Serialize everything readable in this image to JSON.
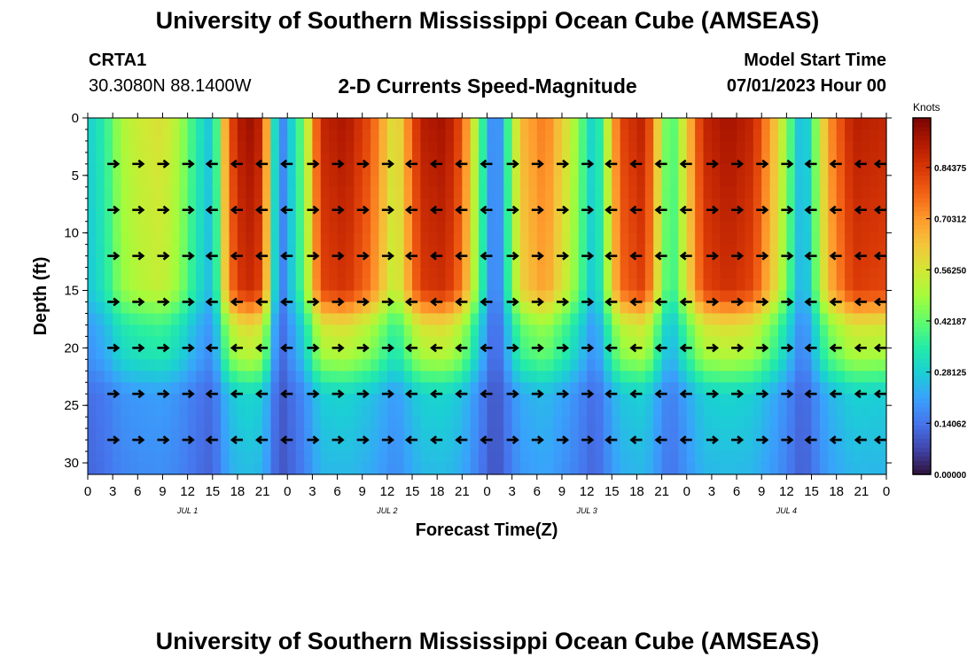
{
  "header": {
    "title": "University of Southern Mississippi Ocean Cube (AMSEAS)",
    "station_id": "CRTA1",
    "station_location": "30.3080N  88.1400W",
    "subtitle": "2-D Currents Speed-Magnitude",
    "model_start_label": "Model Start Time",
    "model_start_value": "07/01/2023 Hour 00"
  },
  "footer": {
    "title": "University of Southern Mississippi Ocean Cube (AMSEAS)"
  },
  "colors": {
    "ramp": [
      "#30123b",
      "#4145ab",
      "#4675ed",
      "#39a2fc",
      "#1bcfd4",
      "#24eca6",
      "#61fc6c",
      "#a4fc3b",
      "#d1e834",
      "#f3c63a",
      "#fe9b2d",
      "#f36315",
      "#d93806",
      "#b11901",
      "#7a0402"
    ]
  },
  "chart_data": {
    "type": "heatmap",
    "title": "2-D Currents Speed-Magnitude",
    "xlabel": "Forecast Time(Z)",
    "ylabel": "Depth (ft)",
    "ylim": [
      0,
      31
    ],
    "xlim_hours": [
      0,
      96
    ],
    "y_ticks": [
      "0",
      "5",
      "10",
      "15",
      "20",
      "25",
      "30"
    ],
    "x_tick_labels": [
      "0",
      "3",
      "6",
      "9",
      "12",
      "15",
      "18",
      "21",
      "0",
      "3",
      "6",
      "9",
      "12",
      "15",
      "18",
      "21",
      "0",
      "3",
      "6",
      "9",
      "12",
      "15",
      "18",
      "21",
      "0",
      "3",
      "6",
      "9",
      "12",
      "15",
      "18",
      "21",
      "0"
    ],
    "day_labels": [
      "JUL 1",
      "JUL 2",
      "JUL 3",
      "JUL 4"
    ],
    "colorbar": {
      "title": "Knots",
      "min": 0.0,
      "max": 0.98,
      "ticks": [
        "0.00000",
        "0.14062",
        "0.28125",
        "0.42187",
        "0.56250",
        "0.70312",
        "0.84375"
      ]
    },
    "surface_speed_by_hour": [
      {
        "hour": 0,
        "speed": 0.28
      },
      {
        "hour": 2,
        "speed": 0.35
      },
      {
        "hour": 4,
        "speed": 0.5
      },
      {
        "hour": 6,
        "speed": 0.55
      },
      {
        "hour": 9,
        "speed": 0.58
      },
      {
        "hour": 11,
        "speed": 0.5
      },
      {
        "hour": 13,
        "speed": 0.35
      },
      {
        "hour": 15,
        "speed": 0.25
      },
      {
        "hour": 17,
        "speed": 0.8
      },
      {
        "hour": 19,
        "speed": 0.95
      },
      {
        "hour": 21,
        "speed": 0.88
      },
      {
        "hour": 23,
        "speed": 0.12
      },
      {
        "hour": 26,
        "speed": 0.45
      },
      {
        "hour": 28,
        "speed": 0.88
      },
      {
        "hour": 31,
        "speed": 0.92
      },
      {
        "hour": 34,
        "speed": 0.8
      },
      {
        "hour": 37,
        "speed": 0.55
      },
      {
        "hour": 40,
        "speed": 0.9
      },
      {
        "hour": 43,
        "speed": 0.93
      },
      {
        "hour": 45,
        "speed": 0.8
      },
      {
        "hour": 49,
        "speed": 0.1
      },
      {
        "hour": 52,
        "speed": 0.65
      },
      {
        "hour": 55,
        "speed": 0.75
      },
      {
        "hour": 58,
        "speed": 0.55
      },
      {
        "hour": 61,
        "speed": 0.25
      },
      {
        "hour": 64,
        "speed": 0.82
      },
      {
        "hour": 67,
        "speed": 0.9
      },
      {
        "hour": 70,
        "speed": 0.35
      },
      {
        "hour": 74,
        "speed": 0.88
      },
      {
        "hour": 77,
        "speed": 0.93
      },
      {
        "hour": 80,
        "speed": 0.88
      },
      {
        "hour": 83,
        "speed": 0.6
      },
      {
        "hour": 86,
        "speed": 0.2
      },
      {
        "hour": 89,
        "speed": 0.7
      },
      {
        "hour": 92,
        "speed": 0.9
      },
      {
        "hour": 96,
        "speed": 0.88
      }
    ],
    "depth_attenuation": [
      {
        "depth": 0,
        "factor": 1.0
      },
      {
        "depth": 15,
        "factor": 0.92
      },
      {
        "depth": 18,
        "factor": 0.6
      },
      {
        "depth": 21,
        "factor": 0.5
      },
      {
        "depth": 24,
        "factor": 0.25
      },
      {
        "depth": 31,
        "factor": 0.2
      }
    ],
    "arrow_depths": [
      4,
      8,
      12,
      16,
      20,
      24,
      28
    ],
    "arrow_hours": [
      3,
      6,
      9,
      12,
      15,
      18,
      21,
      24,
      27,
      30,
      33,
      36,
      39,
      42,
      45,
      48,
      51,
      54,
      57,
      60,
      63,
      66,
      69,
      72,
      75,
      78,
      81,
      84,
      87,
      90,
      93,
      96
    ],
    "arrow_direction_by_hour": [
      {
        "hour": 3,
        "dir": "E"
      },
      {
        "hour": 6,
        "dir": "E"
      },
      {
        "hour": 9,
        "dir": "E"
      },
      {
        "hour": 12,
        "dir": "E"
      },
      {
        "hour": 15,
        "dir": "W"
      },
      {
        "hour": 18,
        "dir": "W"
      },
      {
        "hour": 21,
        "dir": "W"
      },
      {
        "hour": 24,
        "dir": "W"
      },
      {
        "hour": 27,
        "dir": "E"
      },
      {
        "hour": 30,
        "dir": "E"
      },
      {
        "hour": 33,
        "dir": "E"
      },
      {
        "hour": 36,
        "dir": "E"
      },
      {
        "hour": 39,
        "dir": "W"
      },
      {
        "hour": 42,
        "dir": "W"
      },
      {
        "hour": 45,
        "dir": "W"
      },
      {
        "hour": 48,
        "dir": "W"
      },
      {
        "hour": 51,
        "dir": "E"
      },
      {
        "hour": 54,
        "dir": "E"
      },
      {
        "hour": 57,
        "dir": "E"
      },
      {
        "hour": 60,
        "dir": "E"
      },
      {
        "hour": 63,
        "dir": "W"
      },
      {
        "hour": 66,
        "dir": "W"
      },
      {
        "hour": 69,
        "dir": "W"
      },
      {
        "hour": 72,
        "dir": "W"
      },
      {
        "hour": 75,
        "dir": "E"
      },
      {
        "hour": 78,
        "dir": "E"
      },
      {
        "hour": 81,
        "dir": "E"
      },
      {
        "hour": 84,
        "dir": "E"
      },
      {
        "hour": 87,
        "dir": "W"
      },
      {
        "hour": 90,
        "dir": "W"
      },
      {
        "hour": 93,
        "dir": "W"
      },
      {
        "hour": 96,
        "dir": "W"
      }
    ]
  }
}
